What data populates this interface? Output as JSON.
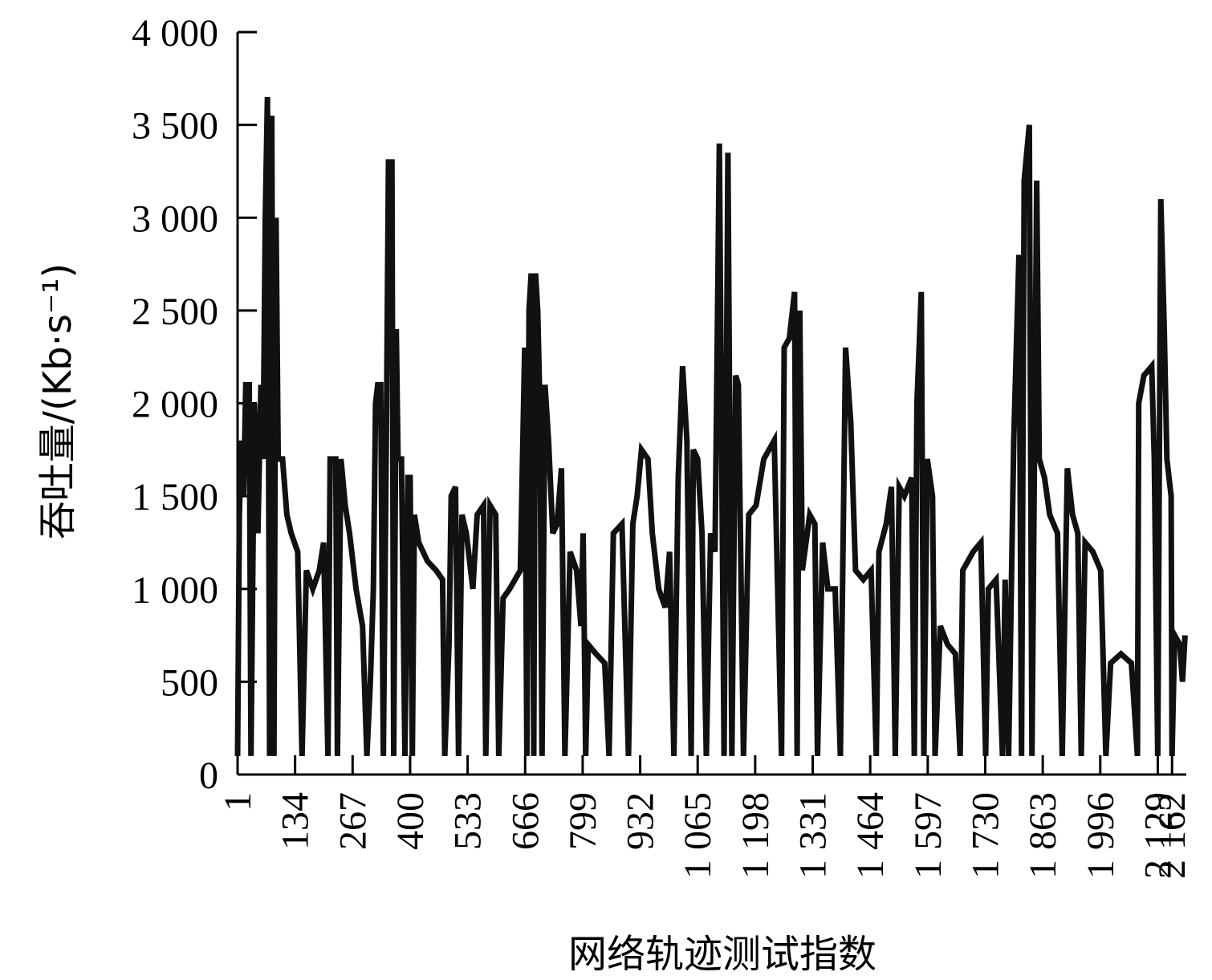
{
  "chart_data": {
    "type": "line",
    "xlabel": "网络轨迹测试指数",
    "ylabel": "吞吐量/(Kb·s⁻¹)",
    "color": "#111111",
    "xlim": [
      1,
      2195
    ],
    "ylim": [
      0,
      4000
    ],
    "xticks": [
      1,
      134,
      267,
      400,
      533,
      666,
      799,
      932,
      {
        "value": 1065,
        "label": "1 065"
      },
      {
        "value": 1198,
        "label": "1 198"
      },
      {
        "value": 1331,
        "label": "1 331"
      },
      {
        "value": 1464,
        "label": "1 464"
      },
      {
        "value": 1597,
        "label": "1 597"
      },
      {
        "value": 1730,
        "label": "1 730"
      },
      {
        "value": 1863,
        "label": "1 863"
      },
      {
        "value": 1996,
        "label": "1 996"
      },
      {
        "value": 2129,
        "label": "2 129"
      },
      {
        "value": 2162,
        "label": "2 162"
      }
    ],
    "yticks": [
      0,
      500,
      {
        "value": 1000,
        "label": "1 000"
      },
      {
        "value": 1500,
        "label": "1 500"
      },
      {
        "value": 2000,
        "label": "2 000"
      },
      {
        "value": 2500,
        "label": "2 500"
      },
      {
        "value": 3000,
        "label": "3 000"
      },
      {
        "value": 3500,
        "label": "3 500"
      },
      {
        "value": 4000,
        "label": "4 000"
      }
    ],
    "x": [
      1,
      5,
      10,
      15,
      20,
      28,
      32,
      40,
      48,
      55,
      60,
      65,
      70,
      75,
      80,
      85,
      90,
      95,
      105,
      115,
      125,
      140,
      150,
      160,
      175,
      190,
      200,
      210,
      215,
      228,
      232,
      240,
      250,
      260,
      275,
      290,
      300,
      308,
      315,
      320,
      325,
      332,
      338,
      345,
      350,
      358,
      362,
      368,
      372,
      380,
      388,
      395,
      400,
      405,
      410,
      420,
      440,
      460,
      475,
      480,
      490,
      495,
      505,
      512,
      520,
      530,
      545,
      555,
      570,
      575,
      585,
      598,
      605,
      615,
      630,
      655,
      665,
      670,
      675,
      680,
      686,
      690,
      695,
      700,
      705,
      712,
      720,
      730,
      740,
      750,
      758,
      770,
      785,
      795,
      800,
      806,
      812,
      830,
      850,
      860,
      870,
      890,
      905,
      915,
      925,
      935,
      950,
      960,
      975,
      990,
      1000,
      1010,
      1020,
      1030,
      1040,
      1050,
      1055,
      1065,
      1075,
      1085,
      1095,
      1105,
      1115,
      1126,
      1135,
      1144,
      1153,
      1159,
      1171,
      1183,
      1200,
      1218,
      1242,
      1259,
      1265,
      1277,
      1289,
      1295,
      1301,
      1307,
      1324,
      1336,
      1342,
      1354,
      1366,
      1383,
      1395,
      1407,
      1419,
      1430,
      1448,
      1466,
      1478,
      1484,
      1501,
      1513,
      1522,
      1531,
      1543,
      1560,
      1566,
      1572,
      1582,
      1588,
      1596,
      1608,
      1614,
      1626,
      1643,
      1661,
      1672,
      1678,
      1702,
      1720,
      1731,
      1737,
      1755,
      1770,
      1776,
      1784,
      1796,
      1808,
      1814,
      1820,
      1832,
      1838,
      1849,
      1855,
      1867,
      1879,
      1897,
      1908,
      1920,
      1932,
      1944,
      1952,
      1961,
      1979,
      1997,
      2009,
      2020,
      2044,
      2068,
      2082,
      2085,
      2097,
      2115,
      2121,
      2129,
      2136,
      2144,
      2150,
      2160,
      2162,
      2168,
      2180,
      2186,
      2192
    ],
    "values": [
      100,
      1400,
      1800,
      1500,
      2100,
      2100,
      100,
      2000,
      1300,
      2100,
      1700,
      3000,
      3650,
      100,
      3550,
      100,
      3000,
      1700,
      1700,
      1400,
      1300,
      1200,
      100,
      1100,
      1000,
      1100,
      1250,
      100,
      1700,
      1700,
      100,
      1700,
      1450,
      1300,
      1000,
      800,
      100,
      500,
      1000,
      2000,
      2100,
      2100,
      100,
      1800,
      3300,
      3300,
      100,
      2400,
      1700,
      1700,
      100,
      1600,
      1600,
      100,
      1400,
      1250,
      1150,
      1100,
      1050,
      100,
      700,
      1500,
      1550,
      100,
      1400,
      1300,
      1000,
      1400,
      1450,
      100,
      1450,
      1400,
      100,
      950,
      1000,
      1100,
      2300,
      100,
      2500,
      2700,
      100,
      2700,
      2500,
      2000,
      100,
      2100,
      1800,
      1300,
      1350,
      1650,
      100,
      1200,
      1100,
      800,
      1300,
      100,
      700,
      650,
      600,
      100,
      1300,
      1350,
      100,
      1350,
      1500,
      1750,
      1700,
      1300,
      1000,
      900,
      1200,
      100,
      1600,
      2200,
      1800,
      100,
      1750,
      1700,
      1300,
      100,
      1300,
      1200,
      3400,
      100,
      3350,
      100,
      2150,
      2100,
      100,
      1400,
      1450,
      1700,
      1800,
      100,
      2300,
      2350,
      2600,
      100,
      2500,
      1100,
      1400,
      1350,
      100,
      1250,
      1000,
      1000,
      100,
      2300,
      1900,
      1100,
      1050,
      1100,
      100,
      1200,
      1350,
      1550,
      100,
      1550,
      1500,
      1600,
      100,
      2000,
      2600,
      100,
      1700,
      1500,
      100,
      800,
      700,
      650,
      100,
      1100,
      1200,
      1250,
      100,
      1000,
      1050,
      100,
      1050,
      100,
      1800,
      2800,
      100,
      3200,
      3500,
      100,
      3200,
      1700,
      1600,
      1400,
      1300,
      100,
      1650,
      1400,
      1300,
      100,
      1250,
      1200,
      1100,
      100,
      600,
      650,
      600,
      100,
      2000,
      2150,
      2200,
      1700,
      100,
      3100,
      2400,
      1700,
      1500,
      100,
      750,
      700,
      500,
      750
    ]
  }
}
